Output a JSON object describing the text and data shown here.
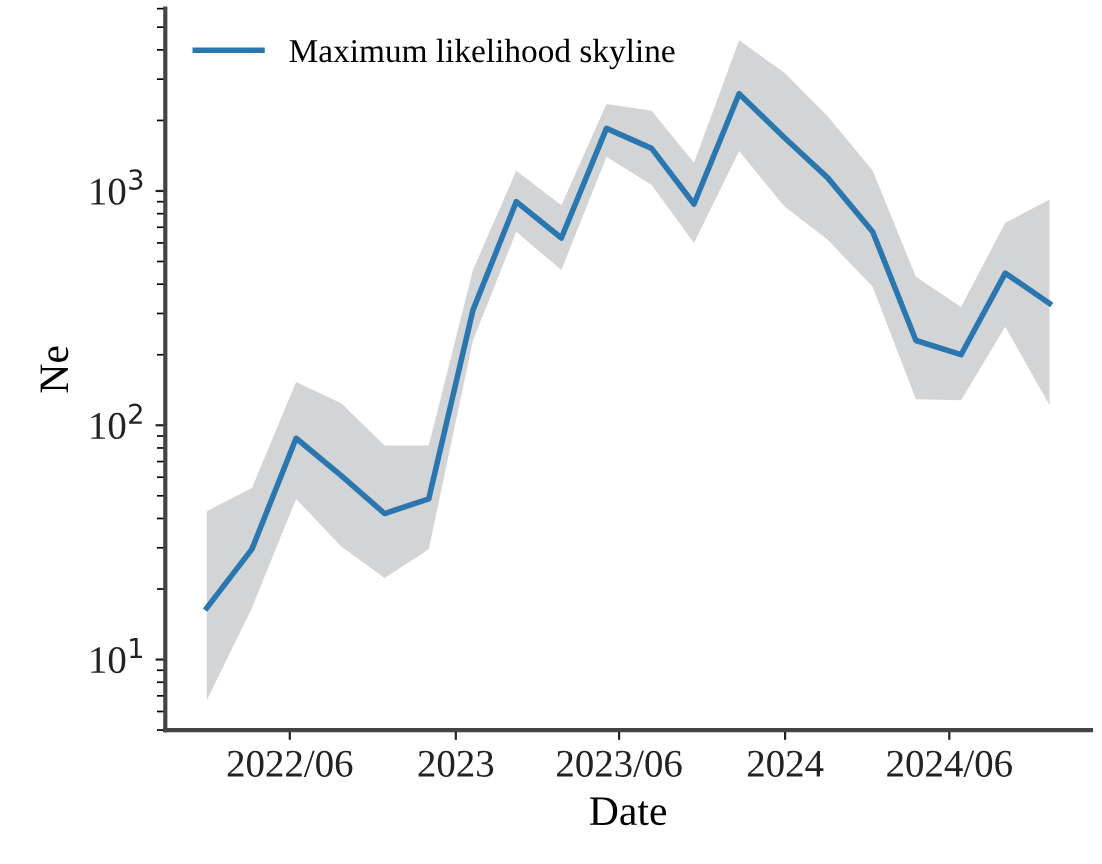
{
  "chart_data": {
    "type": "line",
    "xlabel": "Date",
    "ylabel": "Ne",
    "log": "y",
    "legend": "top left",
    "grid": false,
    "x": [
      "2022-03-31",
      "2022-05-20",
      "2022-07-08",
      "2022-08-27",
      "2022-10-14",
      "2022-12-02",
      "2023-01-20",
      "2023-03-09",
      "2023-04-28",
      "2023-06-17",
      "2023-08-06",
      "2023-09-22",
      "2023-11-11",
      "2023-12-31",
      "2024-02-17",
      "2024-04-07",
      "2024-05-25",
      "2024-07-14",
      "2024-09-01",
      "2024-10-20"
    ],
    "series": [
      {
        "name": "Maximum likelihood skyline",
        "color": "#2a77b0",
        "values": [
          16.6,
          29.6,
          88,
          61,
          42,
          48.5,
          310,
          900,
          630,
          1850,
          1520,
          880,
          2600,
          1690,
          1140,
          670,
          230,
          200,
          446,
          331
        ],
        "lower": [
          6.7,
          16.6,
          48.5,
          30.4,
          22.3,
          29.6,
          230,
          670,
          460,
          1400,
          1060,
          600,
          1480,
          860,
          620,
          390,
          129,
          128,
          263,
          122
        ],
        "upper": [
          43,
          54,
          153,
          124,
          82,
          82,
          460,
          1220,
          870,
          2350,
          2200,
          1320,
          4400,
          3200,
          2090,
          1220,
          430,
          320,
          731,
          919
        ]
      }
    ],
    "xlim": [
      "2022-02-13",
      "2024-12-05"
    ],
    "xticks": [
      {
        "value": "2022-07-01",
        "label": "2022/06"
      },
      {
        "value": "2023-01-01",
        "label": "2023"
      },
      {
        "value": "2023-07-01",
        "label": "2023/06"
      },
      {
        "value": "2024-01-01",
        "label": "2024"
      },
      {
        "value": "2024-07-01",
        "label": "2024/06"
      }
    ],
    "ylim": [
      5,
      6000
    ],
    "yticks": [
      {
        "value": 10,
        "label": "10$^{1}$"
      },
      {
        "value": 100,
        "label": "10$^{2}$"
      },
      {
        "value": 1000,
        "label": "10$^{3}$"
      }
    ]
  }
}
